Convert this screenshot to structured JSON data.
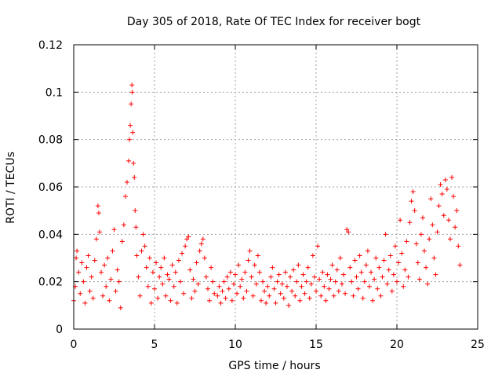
{
  "chart_data": {
    "type": "scatter",
    "title": "Day 305 of 2018, Rate Of TEC Index for receiver bogt",
    "xlabel": "GPS time / hours",
    "ylabel": "ROTI / TECUs",
    "xlim": [
      0,
      25
    ],
    "ylim": [
      0,
      0.12
    ],
    "xticks": [
      "0",
      "5",
      "10",
      "15",
      "20",
      "25"
    ],
    "yticks": [
      "0",
      "0.02",
      "0.04",
      "0.06",
      "0.08",
      "0.1",
      "0.12"
    ],
    "grid": true,
    "marker": "plus",
    "color": "#ff0000",
    "series": [
      {
        "points": [
          [
            0.0,
            0.012
          ],
          [
            0.1,
            0.018
          ],
          [
            0.15,
            0.03
          ],
          [
            0.2,
            0.033
          ],
          [
            0.3,
            0.024
          ],
          [
            0.4,
            0.015
          ],
          [
            0.5,
            0.028
          ],
          [
            0.6,
            0.02
          ],
          [
            0.7,
            0.011
          ],
          [
            0.8,
            0.026
          ],
          [
            0.9,
            0.031
          ],
          [
            1.0,
            0.016
          ],
          [
            1.1,
            0.022
          ],
          [
            1.2,
            0.013
          ],
          [
            1.3,
            0.029
          ],
          [
            1.4,
            0.038
          ],
          [
            1.5,
            0.052
          ],
          [
            1.55,
            0.049
          ],
          [
            1.6,
            0.041
          ],
          [
            1.7,
            0.024
          ],
          [
            1.8,
            0.014
          ],
          [
            1.9,
            0.027
          ],
          [
            2.0,
            0.018
          ],
          [
            2.1,
            0.03
          ],
          [
            2.2,
            0.012
          ],
          [
            2.3,
            0.021
          ],
          [
            2.4,
            0.033
          ],
          [
            2.5,
            0.042
          ],
          [
            2.6,
            0.016
          ],
          [
            2.7,
            0.025
          ],
          [
            2.8,
            0.02
          ],
          [
            2.9,
            0.009
          ],
          [
            3.0,
            0.037
          ],
          [
            3.1,
            0.044
          ],
          [
            3.2,
            0.056
          ],
          [
            3.3,
            0.062
          ],
          [
            3.4,
            0.071
          ],
          [
            3.45,
            0.08
          ],
          [
            3.5,
            0.086
          ],
          [
            3.55,
            0.095
          ],
          [
            3.6,
            0.103
          ],
          [
            3.62,
            0.1
          ],
          [
            3.65,
            0.083
          ],
          [
            3.7,
            0.07
          ],
          [
            3.75,
            0.064
          ],
          [
            3.8,
            0.05
          ],
          [
            3.85,
            0.043
          ],
          [
            3.9,
            0.031
          ],
          [
            4.0,
            0.022
          ],
          [
            4.1,
            0.014
          ],
          [
            4.2,
            0.033
          ],
          [
            4.3,
            0.04
          ],
          [
            4.4,
            0.035
          ],
          [
            4.5,
            0.026
          ],
          [
            4.6,
            0.018
          ],
          [
            4.7,
            0.03
          ],
          [
            4.8,
            0.011
          ],
          [
            4.9,
            0.024
          ],
          [
            5.0,
            0.017
          ],
          [
            5.1,
            0.028
          ],
          [
            5.2,
            0.013
          ],
          [
            5.3,
            0.022
          ],
          [
            5.4,
            0.026
          ],
          [
            5.5,
            0.019
          ],
          [
            5.6,
            0.03
          ],
          [
            5.7,
            0.014
          ],
          [
            5.8,
            0.023
          ],
          [
            5.9,
            0.021
          ],
          [
            6.0,
            0.012
          ],
          [
            6.1,
            0.027
          ],
          [
            6.2,
            0.018
          ],
          [
            6.3,
            0.024
          ],
          [
            6.4,
            0.011
          ],
          [
            6.5,
            0.029
          ],
          [
            6.6,
            0.02
          ],
          [
            6.7,
            0.032
          ],
          [
            6.8,
            0.015
          ],
          [
            6.9,
            0.035
          ],
          [
            7.0,
            0.038
          ],
          [
            7.1,
            0.039
          ],
          [
            7.2,
            0.025
          ],
          [
            7.3,
            0.013
          ],
          [
            7.4,
            0.021
          ],
          [
            7.5,
            0.016
          ],
          [
            7.6,
            0.028
          ],
          [
            7.7,
            0.019
          ],
          [
            7.8,
            0.033
          ],
          [
            7.9,
            0.036
          ],
          [
            8.0,
            0.038
          ],
          [
            8.1,
            0.03
          ],
          [
            8.2,
            0.022
          ],
          [
            8.3,
            0.017
          ],
          [
            8.4,
            0.012
          ],
          [
            8.5,
            0.026
          ],
          [
            8.6,
            0.02
          ],
          [
            8.7,
            0.015
          ],
          [
            8.9,
            0.014
          ],
          [
            9.0,
            0.018
          ],
          [
            9.1,
            0.011
          ],
          [
            9.2,
            0.016
          ],
          [
            9.3,
            0.02
          ],
          [
            9.4,
            0.013
          ],
          [
            9.5,
            0.022
          ],
          [
            9.6,
            0.017
          ],
          [
            9.7,
            0.024
          ],
          [
            9.8,
            0.012
          ],
          [
            9.9,
            0.019
          ],
          [
            10.0,
            0.023
          ],
          [
            10.1,
            0.015
          ],
          [
            10.2,
            0.027
          ],
          [
            10.3,
            0.018
          ],
          [
            10.4,
            0.021
          ],
          [
            10.5,
            0.013
          ],
          [
            10.6,
            0.024
          ],
          [
            10.7,
            0.016
          ],
          [
            10.8,
            0.029
          ],
          [
            10.9,
            0.033
          ],
          [
            11.0,
            0.022
          ],
          [
            11.1,
            0.014
          ],
          [
            11.2,
            0.027
          ],
          [
            11.3,
            0.019
          ],
          [
            11.4,
            0.031
          ],
          [
            11.5,
            0.024
          ],
          [
            11.6,
            0.012
          ],
          [
            11.7,
            0.02
          ],
          [
            11.8,
            0.016
          ],
          [
            11.9,
            0.011
          ],
          [
            12.0,
            0.018
          ],
          [
            12.1,
            0.014
          ],
          [
            12.2,
            0.022
          ],
          [
            12.3,
            0.026
          ],
          [
            12.4,
            0.017
          ],
          [
            12.5,
            0.011
          ],
          [
            12.6,
            0.02
          ],
          [
            12.7,
            0.023
          ],
          [
            12.8,
            0.015
          ],
          [
            12.9,
            0.019
          ],
          [
            13.0,
            0.013
          ],
          [
            13.1,
            0.024
          ],
          [
            13.2,
            0.018
          ],
          [
            13.3,
            0.01
          ],
          [
            13.4,
            0.022
          ],
          [
            13.5,
            0.016
          ],
          [
            13.6,
            0.025
          ],
          [
            13.7,
            0.014
          ],
          [
            13.8,
            0.02
          ],
          [
            13.9,
            0.027
          ],
          [
            14.0,
            0.012
          ],
          [
            14.1,
            0.018
          ],
          [
            14.2,
            0.023
          ],
          [
            14.3,
            0.015
          ],
          [
            14.4,
            0.02
          ],
          [
            14.5,
            0.026
          ],
          [
            14.6,
            0.013
          ],
          [
            14.7,
            0.019
          ],
          [
            14.8,
            0.031
          ],
          [
            14.9,
            0.022
          ],
          [
            15.0,
            0.016
          ],
          [
            15.1,
            0.035
          ],
          [
            15.2,
            0.021
          ],
          [
            15.3,
            0.014
          ],
          [
            15.4,
            0.024
          ],
          [
            15.5,
            0.018
          ],
          [
            15.6,
            0.012
          ],
          [
            15.7,
            0.023
          ],
          [
            15.8,
            0.017
          ],
          [
            15.9,
            0.021
          ],
          [
            16.0,
            0.027
          ],
          [
            16.1,
            0.014
          ],
          [
            16.2,
            0.02
          ],
          [
            16.3,
            0.025
          ],
          [
            16.4,
            0.016
          ],
          [
            16.5,
            0.03
          ],
          [
            16.6,
            0.019
          ],
          [
            16.7,
            0.023
          ],
          [
            16.8,
            0.015
          ],
          [
            16.9,
            0.042
          ],
          [
            17.0,
            0.041
          ],
          [
            17.1,
            0.026
          ],
          [
            17.2,
            0.02
          ],
          [
            17.3,
            0.014
          ],
          [
            17.4,
            0.029
          ],
          [
            17.5,
            0.022
          ],
          [
            17.6,
            0.017
          ],
          [
            17.7,
            0.031
          ],
          [
            17.8,
            0.024
          ],
          [
            17.9,
            0.013
          ],
          [
            18.0,
            0.02
          ],
          [
            18.1,
            0.027
          ],
          [
            18.2,
            0.033
          ],
          [
            18.3,
            0.018
          ],
          [
            18.4,
            0.024
          ],
          [
            18.5,
            0.012
          ],
          [
            18.6,
            0.021
          ],
          [
            18.7,
            0.03
          ],
          [
            18.8,
            0.017
          ],
          [
            18.9,
            0.026
          ],
          [
            19.0,
            0.014
          ],
          [
            19.1,
            0.022
          ],
          [
            19.2,
            0.029
          ],
          [
            19.3,
            0.04
          ],
          [
            19.4,
            0.019
          ],
          [
            19.5,
            0.025
          ],
          [
            19.6,
            0.031
          ],
          [
            19.7,
            0.016
          ],
          [
            19.8,
            0.023
          ],
          [
            19.9,
            0.035
          ],
          [
            20.0,
            0.02
          ],
          [
            20.1,
            0.028
          ],
          [
            20.2,
            0.046
          ],
          [
            20.3,
            0.032
          ],
          [
            20.4,
            0.018
          ],
          [
            20.5,
            0.025
          ],
          [
            20.6,
            0.037
          ],
          [
            20.7,
            0.022
          ],
          [
            20.8,
            0.045
          ],
          [
            20.9,
            0.054
          ],
          [
            21.0,
            0.058
          ],
          [
            21.1,
            0.05
          ],
          [
            21.2,
            0.036
          ],
          [
            21.3,
            0.028
          ],
          [
            21.4,
            0.021
          ],
          [
            21.5,
            0.04
          ],
          [
            21.6,
            0.047
          ],
          [
            21.7,
            0.033
          ],
          [
            21.8,
            0.026
          ],
          [
            21.9,
            0.019
          ],
          [
            22.0,
            0.038
          ],
          [
            22.1,
            0.055
          ],
          [
            22.2,
            0.044
          ],
          [
            22.3,
            0.03
          ],
          [
            22.4,
            0.023
          ],
          [
            22.5,
            0.041
          ],
          [
            22.6,
            0.052
          ],
          [
            22.7,
            0.061
          ],
          [
            22.8,
            0.057
          ],
          [
            22.9,
            0.048
          ],
          [
            23.0,
            0.063
          ],
          [
            23.1,
            0.059
          ],
          [
            23.2,
            0.046
          ],
          [
            23.3,
            0.038
          ],
          [
            23.4,
            0.064
          ],
          [
            23.5,
            0.056
          ],
          [
            23.6,
            0.043
          ],
          [
            23.7,
            0.05
          ],
          [
            23.8,
            0.035
          ],
          [
            23.9,
            0.027
          ]
        ]
      }
    ]
  }
}
